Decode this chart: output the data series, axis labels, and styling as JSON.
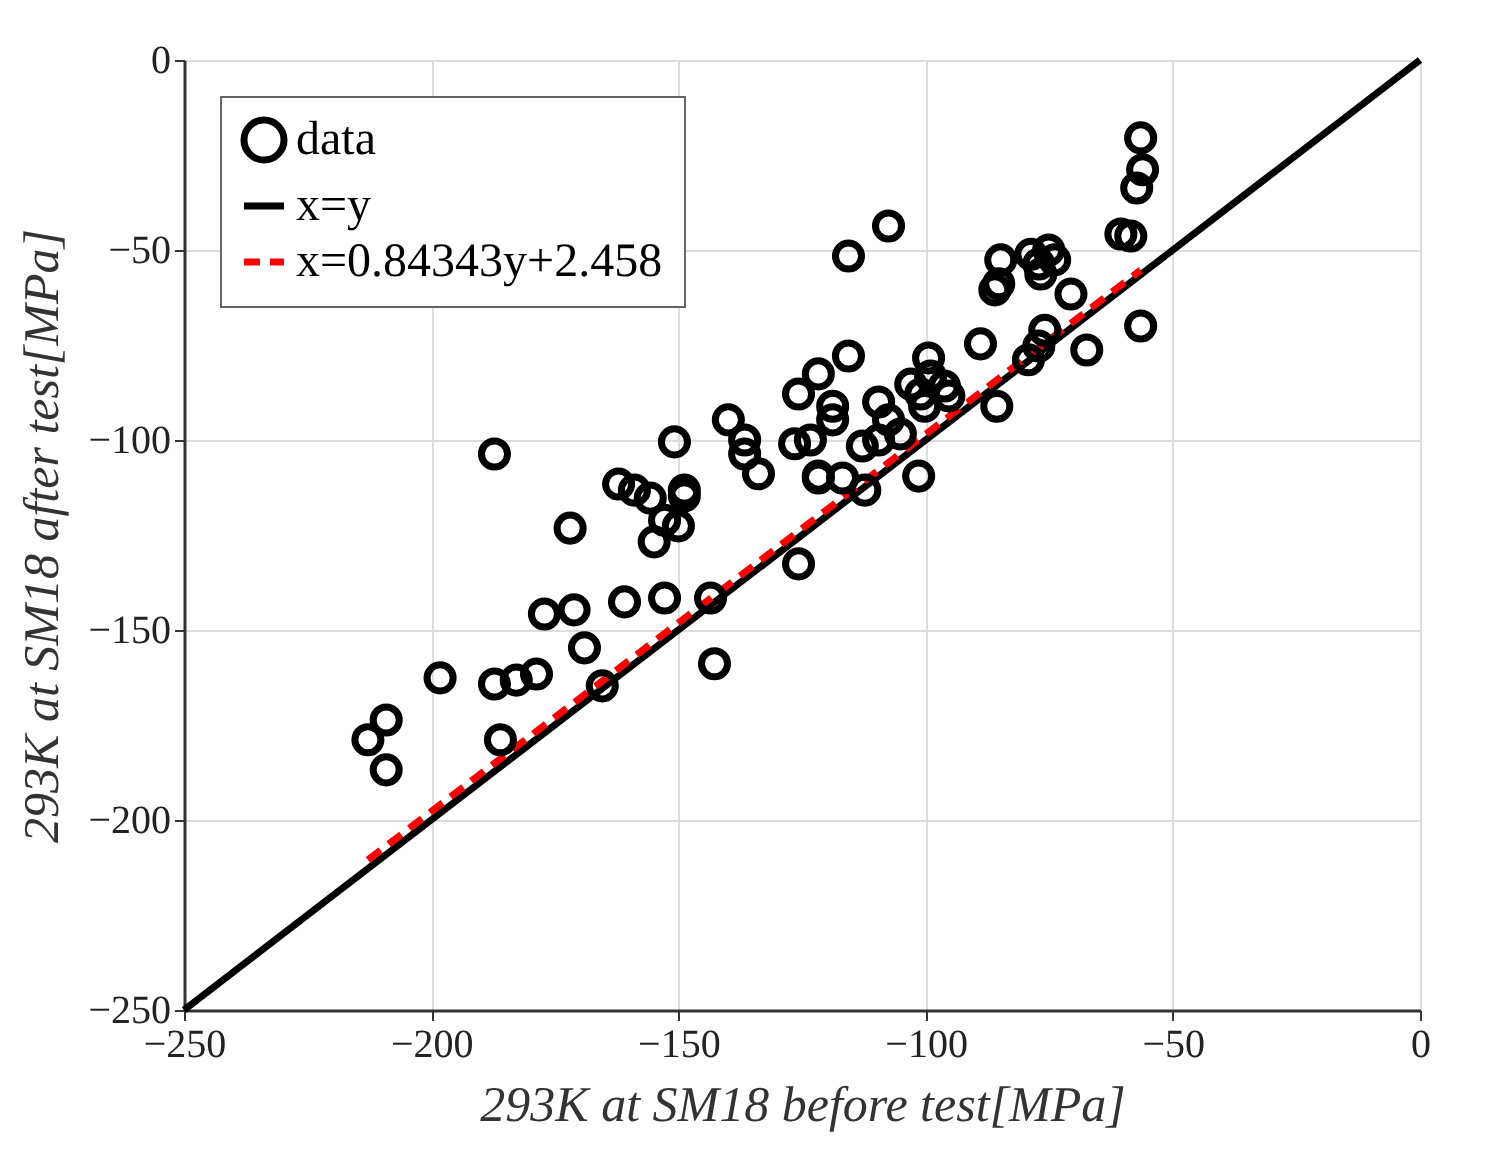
{
  "chart_data": {
    "type": "scatter",
    "xlabel": "293K at SM18 before test[MPa]",
    "ylabel": "293K at SM18 after test[MPa]",
    "xlim": [
      -250,
      0
    ],
    "ylim": [
      -250,
      0
    ],
    "xticks": [
      -250,
      -200,
      -150,
      -100,
      -50,
      0
    ],
    "yticks": [
      -250,
      -200,
      -150,
      -100,
      -50,
      0
    ],
    "grid": true,
    "legend": "top left",
    "series": [
      {
        "name": "data",
        "marker": "circle",
        "color": "#000000",
        "x": [
          -212.8,
          -209.1,
          -209.1,
          -198.2,
          -187.2,
          -182.8,
          -178.7,
          -186.0,
          -177.1,
          -171.1,
          -169.0,
          -165.4,
          -160.9,
          -152.8,
          -154.9,
          -150.0,
          -171.9,
          -143.5,
          -142.7,
          -125.7,
          -187.2,
          -162.1,
          -158.9,
          -155.7,
          -150.8,
          -148.8,
          -148.8,
          -152.8,
          -139.9,
          -136.6,
          -136.6,
          -133.8,
          -125.7,
          -126.5,
          -123.3,
          -121.7,
          -121.7,
          -115.6,
          -107.5,
          -115.6,
          -118.8,
          -118.8,
          -121.7,
          -116.8,
          -112.3,
          -112.8,
          -109.5,
          -107.5,
          -109.5,
          -105.1,
          -103.0,
          -99.4,
          -99.0,
          -96.2,
          -101.0,
          -100.2,
          -95.3,
          -101.4,
          -88.9,
          -85.6,
          -79.2,
          -75.9,
          -77.1,
          -70.6,
          -67.4,
          -86.0,
          -84.8,
          -85.2,
          -78.7,
          -75.1,
          -76.7,
          -73.9,
          -77.1,
          -60.5,
          -58.5,
          -56.5,
          -56.1,
          -57.3,
          -56.5
        ],
        "values": [
          -178.9,
          -173.7,
          -186.8,
          -162.6,
          -164.2,
          -163.2,
          -161.6,
          -178.9,
          -145.8,
          -144.7,
          -154.7,
          -164.7,
          -142.6,
          -141.6,
          -126.8,
          -122.6,
          -123.2,
          -141.6,
          -158.9,
          -132.6,
          -103.7,
          -111.6,
          -113.2,
          -115.3,
          -100.5,
          -113.2,
          -114.7,
          -121.1,
          -94.7,
          -100.0,
          -103.7,
          -108.9,
          -87.9,
          -101.0,
          -100.0,
          -109.5,
          -82.6,
          -51.6,
          -43.7,
          -77.9,
          -91.1,
          -94.7,
          -110.0,
          -110.0,
          -113.2,
          -101.6,
          -90.0,
          -94.7,
          -100.0,
          -98.4,
          -85.3,
          -78.4,
          -83.2,
          -85.8,
          -87.9,
          -91.1,
          -88.4,
          -109.5,
          -74.7,
          -91.1,
          -78.9,
          -71.1,
          -75.3,
          -61.6,
          -76.3,
          -60.5,
          -52.6,
          -58.9,
          -51.1,
          -50.0,
          -56.3,
          -52.6,
          -53.7,
          -45.8,
          -46.3,
          -20.5,
          -28.9,
          -33.7,
          -70.0
        ]
      },
      {
        "name": "x=y",
        "type": "line",
        "line_style": "solid",
        "color": "#000000",
        "x": [
          -250,
          0
        ],
        "values": [
          -250,
          0
        ]
      },
      {
        "name": "x=0.84343y+2.458",
        "type": "line",
        "line_style": "dashed",
        "color": "#ff0000",
        "x": [
          -212.8,
          -56.5
        ],
        "values": [
          -210.5,
          -55.3
        ]
      }
    ]
  }
}
